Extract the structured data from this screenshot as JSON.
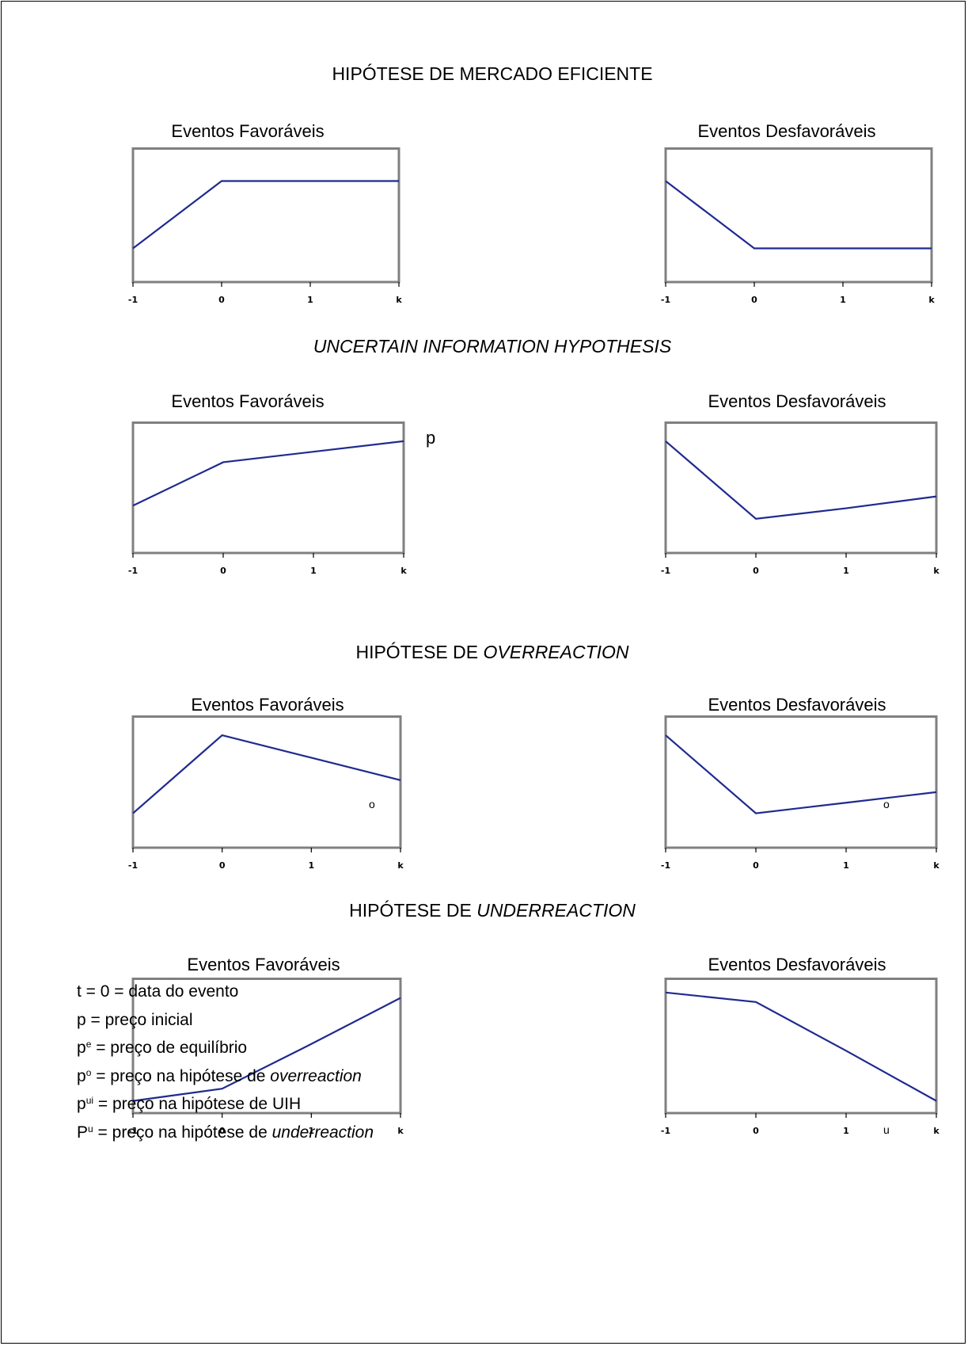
{
  "sections": [
    {
      "plain": "HIPÓTESE DE MERCADO EFICIENTE",
      "italic": ""
    },
    {
      "plain": "",
      "italic": "UNCERTAIN INFORMATION HYPOTHESIS"
    },
    {
      "plain": "HIPÓTESE DE ",
      "italic": "OVERREACTION"
    },
    {
      "plain": "HIPÓTESE DE ",
      "italic": "UNDERREACTION"
    }
  ],
  "line_color": "#1f2a8f",
  "frame_color": "#808080",
  "chart_data": [
    {
      "type": "line",
      "title": "Eventos Favoráveis",
      "categories": [
        "-1",
        "0",
        "1",
        "k"
      ],
      "values": [
        0.25,
        0.75,
        0.75,
        0.75
      ],
      "ylim": [
        0,
        1
      ],
      "grid": false
    },
    {
      "type": "line",
      "title": "Eventos Desfavoráveis",
      "categories": [
        "-1",
        "0",
        "1",
        "k"
      ],
      "values": [
        0.75,
        0.25,
        0.25,
        0.25
      ],
      "ylim": [
        0,
        1
      ],
      "grid": false
    },
    {
      "type": "line",
      "title": "Eventos Favoráveis",
      "categories": [
        "-1",
        "0",
        "1",
        "k"
      ],
      "values": [
        0.36,
        0.69,
        0.77,
        0.85
      ],
      "ylim": [
        0,
        1
      ],
      "grid": false
    },
    {
      "type": "line",
      "title": "Eventos Desfavoráveis",
      "categories": [
        "-1",
        "0",
        "1",
        "k"
      ],
      "values": [
        0.85,
        0.26,
        0.34,
        0.43
      ],
      "ylim": [
        0,
        1
      ],
      "grid": false
    },
    {
      "type": "line",
      "title": "Eventos Favoráveis",
      "categories": [
        "-1",
        "0",
        "1",
        "k"
      ],
      "values": [
        0.26,
        0.85,
        0.68,
        0.51
      ],
      "ylim": [
        0,
        1
      ],
      "grid": false
    },
    {
      "type": "line",
      "title": "Eventos Desfavoráveis",
      "categories": [
        "-1",
        "0",
        "1",
        "k"
      ],
      "values": [
        0.85,
        0.26,
        0.34,
        0.42
      ],
      "ylim": [
        0,
        1
      ],
      "grid": false
    },
    {
      "type": "line",
      "title": "Eventos Favoráveis",
      "categories": [
        "-1",
        "0",
        "1",
        "k"
      ],
      "values": [
        0.09,
        0.18,
        0.51,
        0.85
      ],
      "ylim": [
        0,
        1
      ],
      "grid": false
    },
    {
      "type": "line",
      "title": "Eventos Desfavoráveis",
      "categories": [
        "-1",
        "0",
        "1",
        "k"
      ],
      "values": [
        0.89,
        0.82,
        0.46,
        0.09
      ],
      "ylim": [
        0,
        1
      ],
      "grid": false
    }
  ],
  "stray_labels": [
    "p",
    "o",
    "o",
    "u"
  ],
  "legend": [
    {
      "base": "t = 0 = data do evento",
      "sup": "",
      "rest": "",
      "italic": ""
    },
    {
      "base": "p = preço inicial",
      "sup": "",
      "rest": "",
      "italic": ""
    },
    {
      "base": "p",
      "sup": "e",
      "rest": " = preço de equilíbrio",
      "italic": ""
    },
    {
      "base": "p",
      "sup": "o",
      "rest": " = preço na hipótese de ",
      "italic": "overreaction"
    },
    {
      "base": "p",
      "sup": "ui",
      "rest": " = preço na hipótese de UIH",
      "italic": ""
    },
    {
      "base": "P",
      "sup": "u",
      "rest": " = preço na hipótese de ",
      "italic": "underreaction"
    }
  ]
}
